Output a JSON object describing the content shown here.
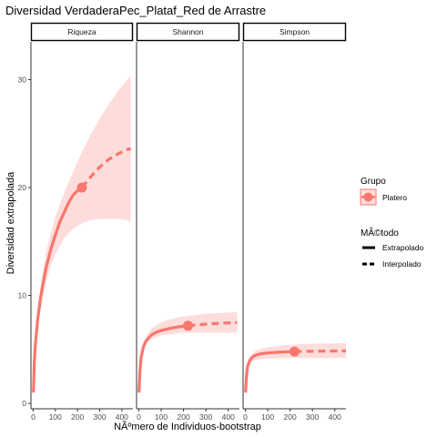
{
  "title": "Diversidad VerdaderaPec_Plataf_Red de Arrastre",
  "xlabel": "NÃºmero de Individuos-bootstrap",
  "ylabel": "Diversidad extrapolada",
  "colors": {
    "series": "#F8766D",
    "band": "#FDDDDB",
    "strip_border": "#000000",
    "axis": "#333333"
  },
  "legend": {
    "group_title": "Grupo",
    "group_items": [
      "Platero"
    ],
    "method_title": "MÃ©todo",
    "method_items": [
      "Extrapolado",
      "Interpolado"
    ]
  },
  "chart_data": {
    "type": "line",
    "facets": [
      "Riqueza",
      "Shannon",
      "Simpson"
    ],
    "x_ticks": [
      0,
      100,
      200,
      300,
      400
    ],
    "y_ticks": [
      0,
      10,
      20,
      30
    ],
    "xlim": [
      -10,
      450
    ],
    "ylim": [
      -0.5,
      33.5
    ],
    "series": [
      {
        "name": "Platero",
        "facet": "Riqueza",
        "observed": {
          "x": 220,
          "y": 20.0
        },
        "line": {
          "x": [
            1,
            5,
            10,
            20,
            30,
            40,
            50,
            60,
            80,
            100,
            120,
            140,
            160,
            180,
            200,
            220,
            260,
            300,
            340,
            380,
            420,
            440
          ],
          "y": [
            1.0,
            3.8,
            5.5,
            7.7,
            9.3,
            10.6,
            11.7,
            12.7,
            14.3,
            15.6,
            16.8,
            17.7,
            18.6,
            19.3,
            19.7,
            20.0,
            21.0,
            21.9,
            22.6,
            23.1,
            23.5,
            23.6
          ]
        },
        "band": {
          "x": [
            1,
            10,
            20,
            40,
            60,
            80,
            100,
            140,
            180,
            220,
            260,
            300,
            340,
            380,
            420,
            440
          ],
          "lower": [
            1.0,
            5.0,
            7.0,
            9.5,
            11.3,
            12.8,
            13.8,
            15.3,
            16.2,
            16.7,
            17.0,
            17.1,
            17.1,
            17.1,
            17.0,
            16.8
          ],
          "upper": [
            1.0,
            6.0,
            8.5,
            11.8,
            14.2,
            15.8,
            17.3,
            19.5,
            21.5,
            23.3,
            24.9,
            26.4,
            27.7,
            28.9,
            29.9,
            30.4
          ]
        }
      },
      {
        "name": "Platero",
        "facet": "Shannon",
        "observed": {
          "x": 220,
          "y": 7.2
        },
        "line": {
          "x": [
            1,
            5,
            10,
            20,
            30,
            40,
            60,
            80,
            100,
            140,
            180,
            220,
            260,
            300,
            340,
            380,
            420,
            440
          ],
          "y": [
            1.0,
            3.0,
            4.2,
            5.2,
            5.7,
            6.0,
            6.4,
            6.6,
            6.75,
            6.95,
            7.1,
            7.2,
            7.28,
            7.35,
            7.4,
            7.44,
            7.47,
            7.48
          ]
        },
        "band": {
          "x": [
            1,
            10,
            20,
            40,
            60,
            100,
            140,
            180,
            220,
            260,
            300,
            340,
            380,
            420,
            440
          ],
          "lower": [
            1.0,
            4.0,
            5.0,
            5.7,
            6.0,
            6.3,
            6.4,
            6.5,
            6.55,
            6.55,
            6.55,
            6.55,
            6.55,
            6.55,
            6.55
          ],
          "upper": [
            1.0,
            4.4,
            5.5,
            6.5,
            7.0,
            7.5,
            7.8,
            8.0,
            8.1,
            8.2,
            8.3,
            8.35,
            8.4,
            8.42,
            8.45
          ]
        }
      },
      {
        "name": "Platero",
        "facet": "Simpson",
        "observed": {
          "x": 220,
          "y": 4.8
        },
        "line": {
          "x": [
            1,
            5,
            10,
            20,
            30,
            40,
            60,
            80,
            100,
            140,
            180,
            220,
            260,
            300,
            340,
            380,
            420,
            450
          ],
          "y": [
            1.0,
            2.5,
            3.4,
            4.0,
            4.25,
            4.4,
            4.55,
            4.62,
            4.67,
            4.73,
            4.77,
            4.8,
            4.82,
            4.83,
            4.84,
            4.85,
            4.86,
            4.86
          ]
        },
        "band": {
          "x": [
            1,
            10,
            20,
            40,
            60,
            100,
            140,
            180,
            220,
            260,
            300,
            340,
            380,
            420,
            450
          ],
          "lower": [
            1.0,
            3.2,
            3.7,
            4.0,
            4.1,
            4.15,
            4.18,
            4.2,
            4.2,
            4.2,
            4.2,
            4.2,
            4.2,
            4.2,
            4.2
          ],
          "upper": [
            1.0,
            3.6,
            4.3,
            4.8,
            5.0,
            5.2,
            5.3,
            5.4,
            5.45,
            5.5,
            5.52,
            5.55,
            5.56,
            5.57,
            5.58
          ]
        }
      }
    ]
  }
}
